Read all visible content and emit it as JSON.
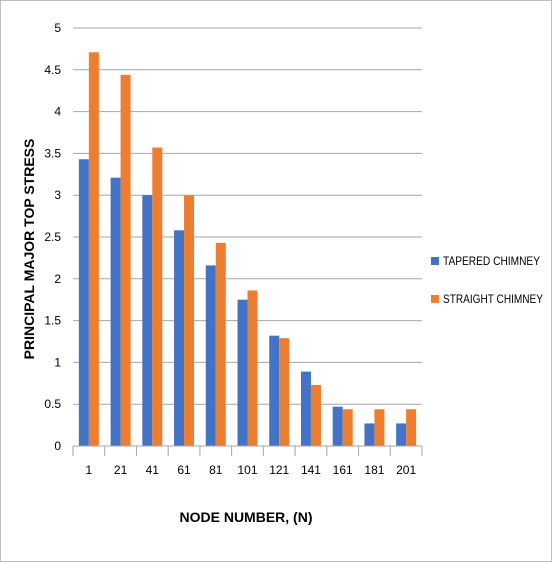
{
  "chart_data": {
    "type": "bar",
    "title": "",
    "xlabel": "NODE NUMBER, (N)",
    "ylabel": "PRINCIPAL MAJOR TOP STRESS",
    "ylim": [
      0,
      5
    ],
    "yticks": [
      "0",
      "0.5",
      "1",
      "1.5",
      "2",
      "2.5",
      "3",
      "3.5",
      "4",
      "4.5",
      "5"
    ],
    "categories": [
      "1",
      "21",
      "41",
      "61",
      "81",
      "101",
      "121",
      "141",
      "161",
      "181",
      "201"
    ],
    "grid": true,
    "legend_position": "right",
    "series": [
      {
        "name": "TAPERED CHIMNEY",
        "color": "#4472C4",
        "values": [
          3.43,
          3.21,
          3.0,
          2.58,
          2.16,
          1.75,
          1.32,
          0.89,
          0.47,
          0.27,
          0.27
        ]
      },
      {
        "name": "STRAIGHT CHIMNEY",
        "color": "#ED7D31",
        "values": [
          4.71,
          4.44,
          3.57,
          3.0,
          2.43,
          1.86,
          1.29,
          0.73,
          0.44,
          0.44,
          0.44
        ]
      }
    ]
  }
}
